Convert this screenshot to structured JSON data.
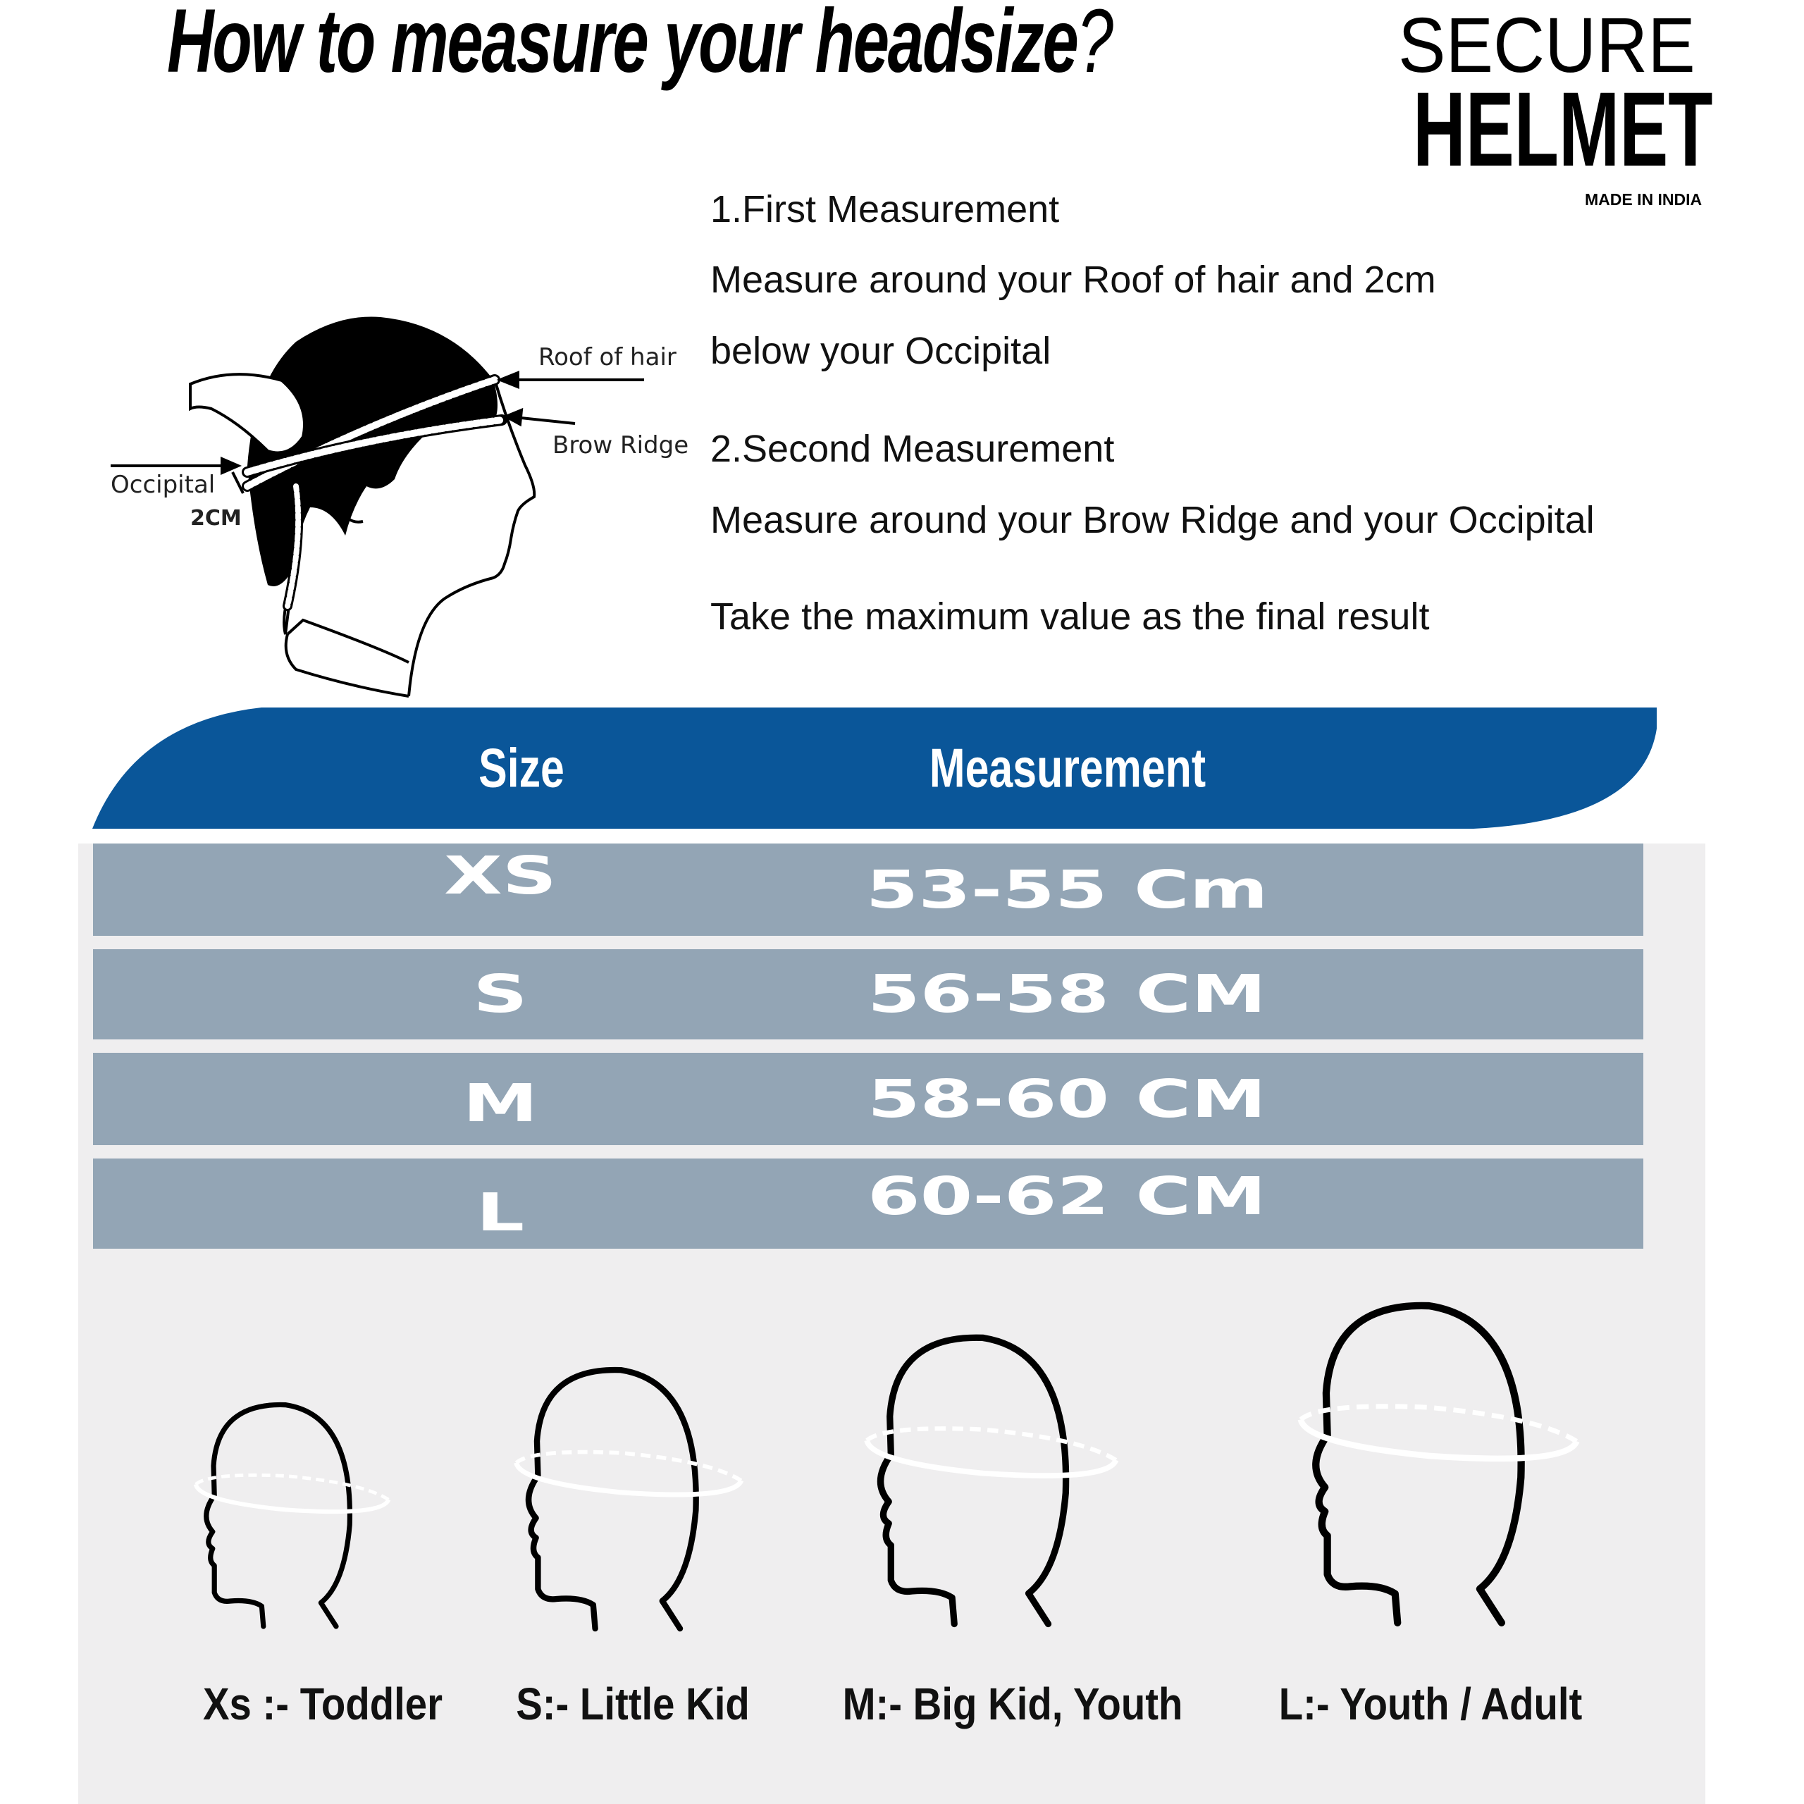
{
  "title": {
    "text": "How to measure your headsize",
    "question_mark": "?"
  },
  "brand": {
    "line1": "SECURE",
    "line2": "HELMET",
    "tagline": "MADE IN INDIA"
  },
  "diagram": {
    "labels": {
      "roof": "Roof of hair",
      "brow": "Brow Ridge",
      "occipital": "Occipital",
      "offset": "2CM"
    }
  },
  "instructions": [
    "1.First Measurement",
    "Measure around your Roof of hair and 2cm",
    "below your Occipital",
    "2.Second Measurement",
    "Measure around your Brow Ridge and your Occipital",
    "Take the maximum value as the final result"
  ],
  "table": {
    "headers": {
      "size": "Size",
      "measurement": "Measurement"
    },
    "header_color": "#0a5699",
    "row_color": "#93a5b5",
    "rows": [
      {
        "size": "XS",
        "measurement": "53-55 Cm"
      },
      {
        "size": "S",
        "measurement": "56-58 CM"
      },
      {
        "size": "M",
        "measurement": "58-60 CM"
      },
      {
        "size": "L",
        "measurement": "60-62 CM"
      }
    ]
  },
  "heads": [
    {
      "icon": "head-profile-icon",
      "caption": "Xs :- Toddler"
    },
    {
      "icon": "head-profile-icon",
      "caption": "S:- Little Kid"
    },
    {
      "icon": "head-profile-icon",
      "caption": "M:- Big Kid, Youth"
    },
    {
      "icon": "head-profile-icon",
      "caption": "L:- Youth / Adult"
    }
  ]
}
